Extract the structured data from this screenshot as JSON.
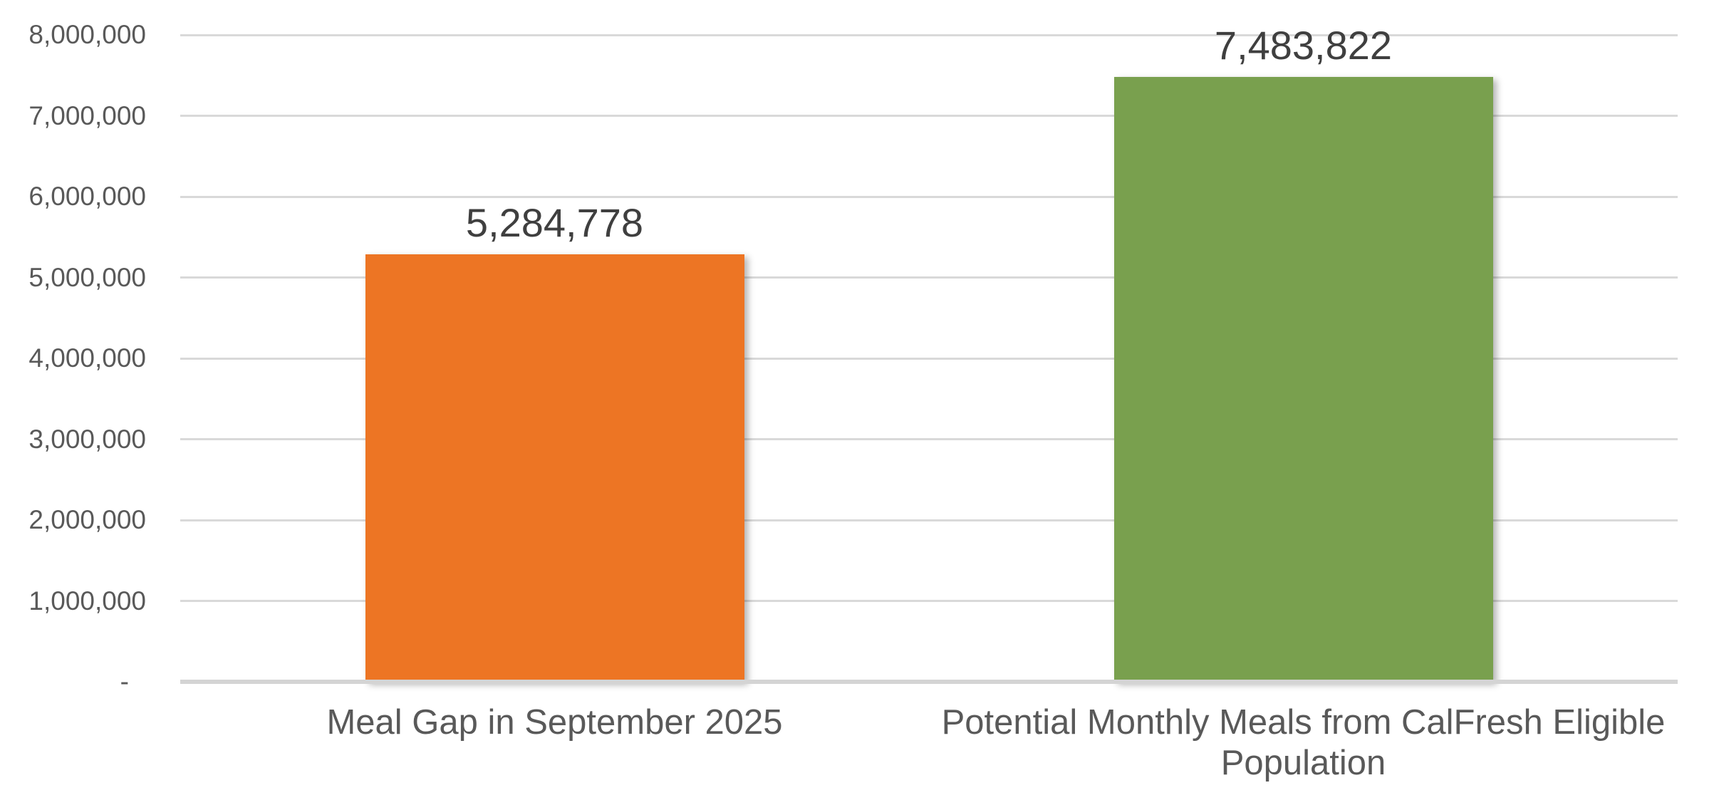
{
  "chart_data": {
    "type": "bar",
    "categories": [
      "Meal Gap in September 2025",
      "Potential Monthly Meals from CalFresh Eligible Population"
    ],
    "category_lines": [
      [
        "Meal Gap in September 2025"
      ],
      [
        "Potential Monthly Meals from CalFresh Eligible",
        "Population"
      ]
    ],
    "values": [
      5284778,
      7483822
    ],
    "value_labels": [
      "5,284,778",
      "7,483,822"
    ],
    "bar_colors": [
      "#ED7524",
      "#79A04E"
    ],
    "yticks": [
      {
        "value": 8000000,
        "label": "8,000,000"
      },
      {
        "value": 7000000,
        "label": "7,000,000"
      },
      {
        "value": 6000000,
        "label": "6,000,000"
      },
      {
        "value": 5000000,
        "label": "5,000,000"
      },
      {
        "value": 4000000,
        "label": "4,000,000"
      },
      {
        "value": 3000000,
        "label": "3,000,000"
      },
      {
        "value": 2000000,
        "label": "2,000,000"
      },
      {
        "value": 1000000,
        "label": "1,000,000"
      },
      {
        "value": 0,
        "label": "-"
      }
    ],
    "ylim": [
      0,
      8000000
    ],
    "xlabel": "",
    "ylabel": "",
    "title": "",
    "grid": true,
    "legend": false,
    "colors": {
      "gridline": "#D9D9D9",
      "zero_line": "#D4D4D4",
      "tick_label": "#595959",
      "category_label": "#595959",
      "value_label": "#3F3F3F",
      "background": "#FFFFFF"
    }
  }
}
